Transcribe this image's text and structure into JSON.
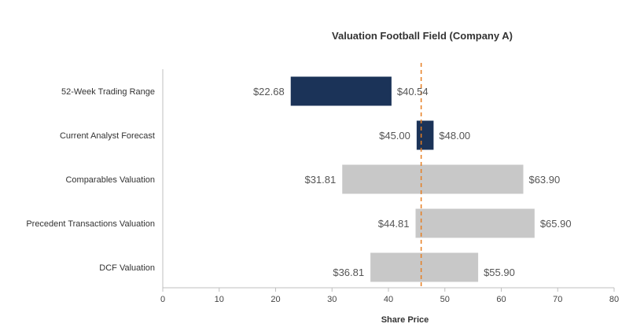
{
  "chart_data": {
    "type": "bar",
    "subtype": "floating-range-bar",
    "title": "Valuation Football Field (Company A)",
    "xlabel": "Share Price",
    "ylabel": "",
    "xlim": [
      0,
      80
    ],
    "xticks": [
      0,
      10,
      20,
      30,
      40,
      50,
      60,
      70,
      80
    ],
    "grid": false,
    "legend": "none",
    "reference_line": {
      "value": 45.8,
      "style": "dashed",
      "color": "#e67e22"
    },
    "categories": [
      "52-Week Trading Range",
      "Current Analyst Forecast",
      "Comparables Valuation",
      "Precedent Transactions Valuation",
      "DCF Valuation"
    ],
    "ranges": [
      {
        "low": 22.68,
        "high": 40.54,
        "low_label": "$22.68",
        "high_label": "$40.54",
        "color": "#1b3358"
      },
      {
        "low": 45.0,
        "high": 48.0,
        "low_label": "$45.00",
        "high_label": "$48.00",
        "color": "#1b3358"
      },
      {
        "low": 31.81,
        "high": 63.9,
        "low_label": "$31.81",
        "high_label": "$63.90",
        "color": "#c8c8c8"
      },
      {
        "low": 44.81,
        "high": 65.9,
        "low_label": "$44.81",
        "high_label": "$65.90",
        "color": "#c8c8c8"
      },
      {
        "low": 36.81,
        "high": 55.9,
        "low_label": "$36.81",
        "high_label": "$55.90",
        "color": "#c8c8c8"
      }
    ]
  }
}
